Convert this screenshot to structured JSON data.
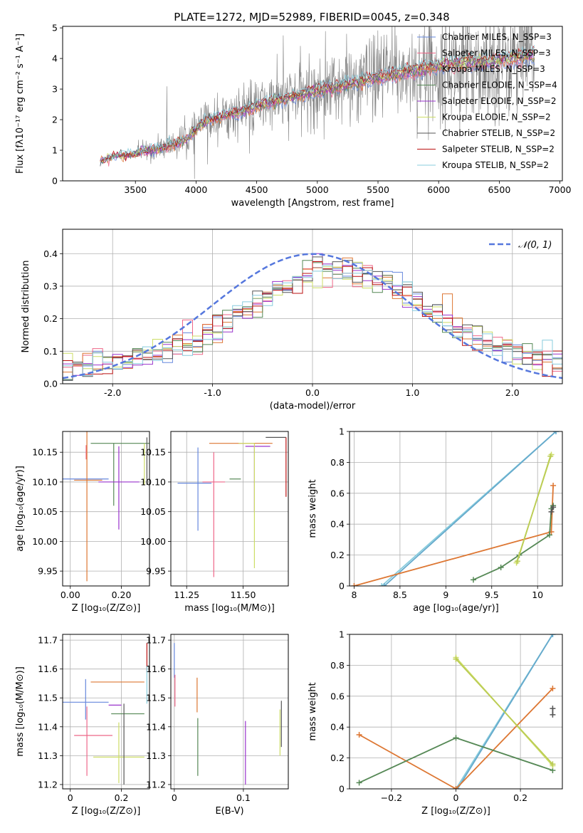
{
  "figure": {
    "title": "PLATE=1272, MJD=52989, FIBERID=0045, z=0.348"
  },
  "colors": {
    "models": [
      "#6688dd",
      "#ee6688",
      "#dd7733",
      "#558855",
      "#9933cc",
      "#ccdd66",
      "#555555",
      "#bb1111",
      "#88ccdd"
    ],
    "data": "#808080",
    "gauss": "#5577dd",
    "grid": "#b0b0b0"
  },
  "chart_data": [
    {
      "id": "spectrum",
      "type": "line",
      "xlabel": "wavelength [Angstrom, rest frame]",
      "ylabel": "Flux [fλ10⁻¹⁷ erg cm⁻² s⁻¹ A⁻¹]",
      "xlim": [
        2900,
        7020
      ],
      "ylim": [
        0,
        5.05
      ],
      "xticks": [
        3500,
        4000,
        4500,
        5000,
        5500,
        6000,
        6500,
        7000
      ],
      "yticks": [
        0,
        1,
        2,
        3,
        4,
        5
      ],
      "grid": false,
      "legend_position": "top-right",
      "legend": [
        "Chabrier MILES, N_SSP=3",
        "Salpeter MILES, N_SSP=3",
        "Kroupa MILES, N_SSP=3",
        "Chabrier ELODIE, N_SSP=4",
        "Salpeter ELODIE, N_SSP=2",
        "Kroupa ELODIE, N_SSP=2",
        "Chabrier STELIB, N_SSP=2",
        "Salpeter STELIB, N_SSP=2",
        "Kroupa STELIB, N_SSP=2"
      ],
      "data_x_range": [
        3210,
        6790
      ],
      "continuum": {
        "x": [
          3210,
          3300,
          3450,
          3550,
          3700,
          3850,
          3950,
          4050,
          4200,
          4400,
          4600,
          4800,
          5000,
          5200,
          5400,
          5600,
          5800,
          6000,
          6200,
          6400,
          6600,
          6790
        ],
        "y": [
          0.65,
          0.8,
          0.85,
          0.95,
          1.05,
          1.25,
          1.45,
          1.9,
          2.1,
          2.3,
          2.55,
          2.75,
          2.95,
          3.1,
          3.3,
          3.45,
          3.6,
          3.75,
          3.85,
          3.9,
          4.0,
          4.1
        ]
      }
    },
    {
      "id": "residuals",
      "type": "line",
      "xlabel": "(data-model)/error",
      "ylabel": "Normed distribution",
      "xlim": [
        -2.5,
        2.5
      ],
      "ylim": [
        0,
        0.475
      ],
      "xticks": [
        -2,
        -1,
        0,
        1,
        2
      ],
      "yticks": [
        0.0,
        0.1,
        0.2,
        0.3,
        0.4
      ],
      "grid": true,
      "legend_position": "top-right",
      "legend": [
        "𝒩(0, 1)"
      ],
      "bin_width": 0.1
    },
    {
      "id": "age-vs-Z",
      "type": "scatter",
      "xlabel": "Z [log₁₀(Z/Z⊙)]",
      "ylabel": "age  [log₁₀(age/yr)]",
      "xlim": [
        -0.03,
        0.31
      ],
      "ylim": [
        9.925,
        10.185
      ],
      "xticks": [
        0.0,
        0.2
      ],
      "yticks": [
        9.95,
        10.0,
        10.05,
        10.1,
        10.15
      ],
      "grid": true,
      "errorbars": [
        {
          "x": 0.06,
          "y": 10.105,
          "xerr": [
            0.09,
            0.09
          ],
          "yerr": [
            0.0,
            0.0
          ]
        },
        {
          "x": 0.062,
          "y": 10.15,
          "xerr": [
            0.0,
            0.0
          ],
          "yerr": [
            0.012,
            0.012
          ]
        },
        {
          "x": 0.065,
          "y": 10.103,
          "xerr": [
            0.05,
            0.06
          ],
          "yerr": [
            0.17,
            0.12
          ]
        },
        {
          "x": 0.17,
          "y": 10.165,
          "xerr": [
            0.09,
            0.14
          ],
          "yerr": [
            0.105,
            0.0
          ]
        },
        {
          "x": 0.19,
          "y": 10.1,
          "xerr": [
            0.08,
            0.08
          ],
          "yerr": [
            0.08,
            0.06
          ]
        },
        {
          "x": 0.29,
          "y": 10.165,
          "xerr": [
            0.0,
            0.0
          ],
          "yerr": [
            0.07,
            0.0
          ]
        },
        {
          "x": 0.3,
          "y": 10.135,
          "xerr": [
            0.0,
            0.0
          ],
          "yerr": [
            0.04,
            0.04
          ]
        }
      ]
    },
    {
      "id": "age-vs-mass",
      "type": "scatter",
      "xlabel": "mass [log₁₀(M/M⊙)]",
      "ylabel": "",
      "xlim": [
        11.18,
        11.7
      ],
      "ylim": [
        9.925,
        10.185
      ],
      "xticks": [
        11.25,
        11.5
      ],
      "yticks": [
        9.95,
        10.0,
        10.05,
        10.1,
        10.15
      ],
      "grid": true,
      "errorbars": [
        {
          "x": 11.3,
          "y": 10.098,
          "xerr": [
            0.09,
            0.06
          ],
          "yerr": [
            0.08,
            0.06
          ]
        },
        {
          "x": 11.37,
          "y": 10.1,
          "xerr": [
            0.05,
            0.05
          ],
          "yerr": [
            0.16,
            0.05
          ]
        },
        {
          "x": 11.47,
          "y": 10.165,
          "xerr": [
            0.12,
            0.16
          ],
          "yerr": [
            0.0,
            0.0
          ]
        },
        {
          "x": 11.49,
          "y": 10.105,
          "xerr": [
            0.05,
            0.0
          ],
          "yerr": [
            0.0,
            0.0
          ]
        },
        {
          "x": 11.55,
          "y": 10.16,
          "xerr": [
            0.04,
            0.07
          ],
          "yerr": [
            0.11,
            0.0
          ]
        },
        {
          "x": 11.55,
          "y": 10.165,
          "xerr": [
            0.07,
            0.0
          ],
          "yerr": [
            0.21,
            0.0
          ]
        },
        {
          "x": 11.6,
          "y": 10.175,
          "xerr": [
            0.0,
            0.09
          ],
          "yerr": [
            0.0,
            0.0
          ]
        },
        {
          "x": 11.69,
          "y": 10.175,
          "xerr": [
            0.0,
            0.0
          ],
          "yerr": [
            0.1,
            0.0
          ]
        }
      ]
    },
    {
      "id": "mass-weight-vs-age",
      "type": "line",
      "xlabel": "age  [log₁₀(age/yr)]",
      "ylabel": "mass weight",
      "xlim": [
        7.95,
        10.27
      ],
      "ylim": [
        0,
        1.0
      ],
      "xticks": [
        8.0,
        8.5,
        9.0,
        9.5,
        10.0
      ],
      "yticks": [
        0.0,
        0.2,
        0.4,
        0.6,
        0.8,
        1.0
      ],
      "grid": true,
      "series": [
        {
          "x": [
            8.3,
            10.2
          ],
          "y": [
            0.0,
            1.0
          ]
        },
        {
          "x": [
            8.33,
            10.2
          ],
          "y": [
            0.0,
            1.0
          ]
        },
        {
          "x": [
            8.0,
            10.15,
            10.17
          ],
          "y": [
            0.0,
            0.35,
            0.65
          ]
        },
        {
          "x": [
            9.3,
            9.6,
            9.8,
            10.13,
            10.15,
            10.17
          ],
          "y": [
            0.04,
            0.12,
            0.2,
            0.33,
            0.5,
            0.52
          ]
        },
        {
          "x": [
            9.77,
            10.15
          ],
          "y": [
            0.15,
            0.85
          ]
        },
        {
          "x": [
            9.78,
            10.14
          ],
          "y": [
            0.16,
            0.84
          ]
        },
        {
          "x": [
            10.15,
            10.17
          ],
          "y": [
            0.48,
            0.51
          ]
        }
      ]
    },
    {
      "id": "mass-vs-Z",
      "type": "scatter",
      "xlabel": "Z [log₁₀(Z/Z⊙)]",
      "ylabel": "mass [log₁₀(M/M⊙)]",
      "xlim": [
        -0.03,
        0.31
      ],
      "ylim": [
        11.185,
        11.72
      ],
      "xticks": [
        0.0,
        0.2
      ],
      "yticks": [
        11.2,
        11.3,
        11.4,
        11.5,
        11.6,
        11.7
      ],
      "grid": true,
      "errorbars": [
        {
          "x": 0.06,
          "y": 11.485,
          "xerr": [
            0.09,
            0.09
          ],
          "yerr": [
            0.06,
            0.08
          ]
        },
        {
          "x": 0.065,
          "y": 11.37,
          "xerr": [
            0.05,
            0.1
          ],
          "yerr": [
            0.14,
            0.1
          ]
        },
        {
          "x": 0.16,
          "y": 11.555,
          "xerr": [
            0.08,
            0.13
          ],
          "yerr": [
            0.0,
            0.0
          ]
        },
        {
          "x": 0.2,
          "y": 11.445,
          "xerr": [
            0.04,
            0.09
          ],
          "yerr": [
            0.0,
            0.0
          ]
        },
        {
          "x": 0.17,
          "y": 11.475,
          "xerr": [
            0.02,
            0.03
          ],
          "yerr": [
            0.0,
            0.0
          ]
        },
        {
          "x": 0.19,
          "y": 11.295,
          "xerr": [
            0.1,
            0.1
          ],
          "yerr": [
            0.09,
            0.12
          ]
        },
        {
          "x": 0.21,
          "y": 11.3,
          "xerr": [
            0.0,
            0.0
          ],
          "yerr": [
            0.1,
            0.18
          ]
        },
        {
          "x": 0.3,
          "y": 11.59,
          "xerr": [
            0.0,
            0.0
          ],
          "yerr": [
            0.0,
            0.1
          ]
        },
        {
          "x": 0.3,
          "y": 11.52,
          "xerr": [
            0.0,
            0.0
          ],
          "yerr": [
            0.04,
            0.09
          ]
        }
      ]
    },
    {
      "id": "mass-vs-EBV",
      "type": "scatter",
      "xlabel": "E(B-V)",
      "ylabel": "",
      "xlim": [
        -0.005,
        0.165
      ],
      "ylim": [
        11.185,
        11.72
      ],
      "xticks": [
        0.0,
        0.1
      ],
      "yticks": [
        11.2,
        11.3,
        11.4,
        11.5,
        11.6,
        11.7
      ],
      "grid": true,
      "errorbars": [
        {
          "x": 0.0,
          "y": 11.6,
          "xerr": [
            0.0,
            0.0
          ],
          "yerr": [
            0.03,
            0.09
          ]
        },
        {
          "x": 0.001,
          "y": 11.53,
          "xerr": [
            0.0,
            0.0
          ],
          "yerr": [
            0.06,
            0.05
          ]
        },
        {
          "x": 0.033,
          "y": 11.5,
          "xerr": [
            0.0,
            0.0
          ],
          "yerr": [
            0.05,
            0.07
          ]
        },
        {
          "x": 0.034,
          "y": 11.39,
          "xerr": [
            0.0,
            0.0
          ],
          "yerr": [
            0.16,
            0.04
          ]
        },
        {
          "x": 0.103,
          "y": 11.36,
          "xerr": [
            0.0,
            0.0
          ],
          "yerr": [
            0.16,
            0.06
          ]
        },
        {
          "x": 0.153,
          "y": 11.38,
          "xerr": [
            0.0,
            0.0
          ],
          "yerr": [
            0.08,
            0.08
          ]
        },
        {
          "x": 0.155,
          "y": 11.43,
          "xerr": [
            0.0,
            0.0
          ],
          "yerr": [
            0.1,
            0.06
          ]
        }
      ]
    },
    {
      "id": "mass-weight-vs-Z",
      "type": "line",
      "xlabel": "Z [log₁₀(Z/Z⊙)]",
      "ylabel": "mass weight",
      "xlim": [
        -0.33,
        0.33
      ],
      "ylim": [
        0,
        1.0
      ],
      "xticks": [
        -0.2,
        0.0,
        0.2
      ],
      "yticks": [
        0.0,
        0.2,
        0.4,
        0.6,
        0.8,
        1.0
      ],
      "grid": true,
      "series": [
        {
          "x": [
            0.0,
            0.3
          ],
          "y": [
            0.0,
            1.0
          ]
        },
        {
          "x": [
            0.005,
            0.3
          ],
          "y": [
            0.0,
            1.0
          ]
        },
        {
          "x": [
            -0.3,
            0.0,
            0.3
          ],
          "y": [
            0.35,
            0.0,
            0.65
          ]
        },
        {
          "x": [
            -0.3,
            0.0,
            0.3
          ],
          "y": [
            0.04,
            0.33,
            0.12
          ]
        },
        {
          "x": [
            0.0,
            0.3
          ],
          "y": [
            0.85,
            0.15
          ]
        },
        {
          "x": [
            0.0,
            0.3
          ],
          "y": [
            0.84,
            0.16
          ]
        },
        {
          "x": [
            0.3,
            0.3
          ],
          "y": [
            0.48,
            0.52
          ]
        }
      ]
    }
  ]
}
